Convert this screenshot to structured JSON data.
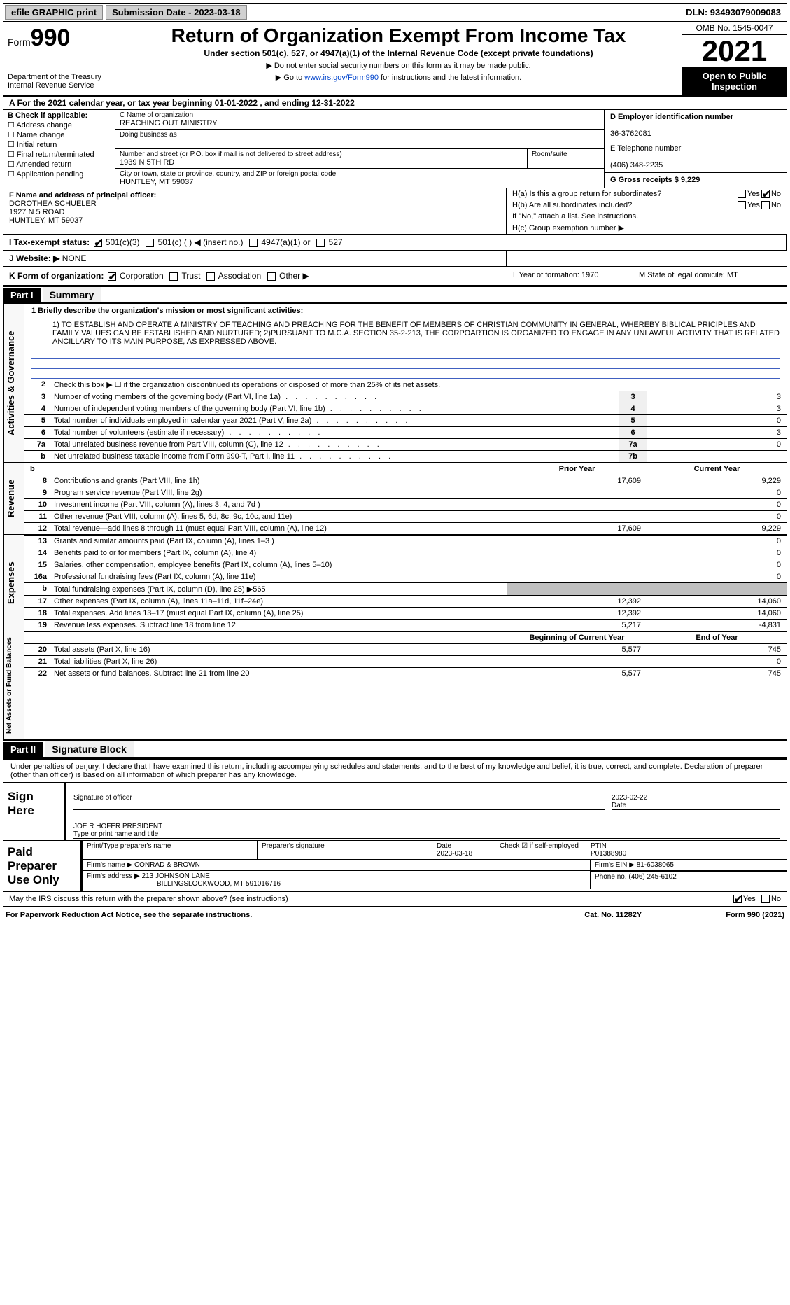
{
  "topbar": {
    "print": "efile GRAPHIC print",
    "sub_label": "Submission Date - 2023-03-18",
    "dln_label": "DLN: 93493079009083"
  },
  "header": {
    "form_prefix": "Form",
    "form_no": "990",
    "dept": "Department of the Treasury\nInternal Revenue Service",
    "title": "Return of Organization Exempt From Income Tax",
    "sub": "Under section 501(c), 527, or 4947(a)(1) of the Internal Revenue Code (except private foundations)",
    "note1": "▶ Do not enter social security numbers on this form as it may be made public.",
    "note2_pre": "▶ Go to ",
    "note2_link": "www.irs.gov/Form990",
    "note2_post": " for instructions and the latest information.",
    "omb": "OMB No. 1545-0047",
    "year": "2021",
    "public": "Open to Public Inspection"
  },
  "line_a": "A For the 2021 calendar year, or tax year beginning 01-01-2022   , and ending 12-31-2022",
  "block_b": {
    "hdr": "B Check if applicable:",
    "items": [
      "Address change",
      "Name change",
      "Initial return",
      "Final return/terminated",
      "Amended return",
      "Application pending"
    ]
  },
  "block_c": {
    "name_lbl": "C Name of organization",
    "name": "REACHING OUT MINISTRY",
    "dba_lbl": "Doing business as",
    "street_lbl": "Number and street (or P.O. box if mail is not delivered to street address)",
    "street": "1939 N 5TH RD",
    "suite_lbl": "Room/suite",
    "city_lbl": "City or town, state or province, country, and ZIP or foreign postal code",
    "city": "HUNTLEY, MT  59037"
  },
  "block_d": {
    "ein_lbl": "D Employer identification number",
    "ein": "36-3762081",
    "tel_lbl": "E Telephone number",
    "tel": "(406) 348-2235",
    "gross_lbl": "G Gross receipts $ 9,229"
  },
  "block_f": {
    "hdr": "F  Name and address of principal officer:",
    "name": "DOROTHEA SCHUELER",
    "street": "1927 N 5 ROAD",
    "city": "HUNTLEY, MT  59037"
  },
  "block_h": {
    "a": "H(a)  Is this a group return for subordinates?",
    "b": "H(b)  Are all subordinates included?",
    "b_note": "If \"No,\" attach a list. See instructions.",
    "c": "H(c)  Group exemption number ▶",
    "yes": "Yes",
    "no": "No"
  },
  "row_i": {
    "lbl": "I   Tax-exempt status:",
    "opts": [
      "501(c)(3)",
      "501(c) (  ) ◀ (insert no.)",
      "4947(a)(1) or",
      "527"
    ]
  },
  "row_j": {
    "lbl": "J   Website: ▶",
    "val": "NONE"
  },
  "row_k": {
    "lbl": "K Form of organization:",
    "opts": [
      "Corporation",
      "Trust",
      "Association",
      "Other ▶"
    ],
    "l_lbl": "L Year of formation: 1970",
    "m_lbl": "M State of legal domicile: MT"
  },
  "parts": {
    "p1": "Part I",
    "p1_title": "Summary",
    "p2": "Part II",
    "p2_title": "Signature Block"
  },
  "summary": {
    "q1_hdr": "1  Briefly describe the organization's mission or most significant activities:",
    "q1": "1) TO ESTABLISH AND OPERATE A MINISTRY OF TEACHING AND PREACHING FOR THE BENEFIT OF MEMBERS OF CHRISTIAN COMMUNITY IN GENERAL, WHEREBY BIBLICAL PRICIPLES AND FAMILY VALUES CAN BE ESTABLISHED AND NURTURED; 2)PURSUANT TO M.C.A. SECTION 35-2-213, THE CORPOARTION IS ORGANIZED TO ENGAGE IN ANY UNLAWFUL ACTIVITY THAT IS RELATED ANCILLARY TO ITS MAIN PURPOSE, AS EXPRESSED ABOVE.",
    "q2": "Check this box ▶ ☐  if the organization discontinued its operations or disposed of more than 25% of its net assets.",
    "rows": [
      {
        "n": "3",
        "lbl": "Number of voting members of the governing body (Part VI, line 1a)",
        "box": "3",
        "v": "3"
      },
      {
        "n": "4",
        "lbl": "Number of independent voting members of the governing body (Part VI, line 1b)",
        "box": "4",
        "v": "3"
      },
      {
        "n": "5",
        "lbl": "Total number of individuals employed in calendar year 2021 (Part V, line 2a)",
        "box": "5",
        "v": "0"
      },
      {
        "n": "6",
        "lbl": "Total number of volunteers (estimate if necessary)",
        "box": "6",
        "v": "3"
      },
      {
        "n": "7a",
        "lbl": "Total unrelated business revenue from Part VIII, column (C), line 12",
        "box": "7a",
        "v": "0"
      },
      {
        "n": "b",
        "lbl": "Net unrelated business taxable income from Form 990-T, Part I, line 11",
        "box": "7b",
        "v": ""
      }
    ]
  },
  "fin": {
    "prior": "Prior Year",
    "current": "Current Year",
    "boy": "Beginning of Current Year",
    "eoy": "End of Year",
    "revenue": [
      {
        "n": "8",
        "lbl": "Contributions and grants (Part VIII, line 1h)",
        "c1": "17,609",
        "c2": "9,229"
      },
      {
        "n": "9",
        "lbl": "Program service revenue (Part VIII, line 2g)",
        "c1": "",
        "c2": "0"
      },
      {
        "n": "10",
        "lbl": "Investment income (Part VIII, column (A), lines 3, 4, and 7d )",
        "c1": "",
        "c2": "0"
      },
      {
        "n": "11",
        "lbl": "Other revenue (Part VIII, column (A), lines 5, 6d, 8c, 9c, 10c, and 11e)",
        "c1": "",
        "c2": "0"
      },
      {
        "n": "12",
        "lbl": "Total revenue—add lines 8 through 11 (must equal Part VIII, column (A), line 12)",
        "c1": "17,609",
        "c2": "9,229"
      }
    ],
    "expenses": [
      {
        "n": "13",
        "lbl": "Grants and similar amounts paid (Part IX, column (A), lines 1–3 )",
        "c1": "",
        "c2": "0"
      },
      {
        "n": "14",
        "lbl": "Benefits paid to or for members (Part IX, column (A), line 4)",
        "c1": "",
        "c2": "0"
      },
      {
        "n": "15",
        "lbl": "Salaries, other compensation, employee benefits (Part IX, column (A), lines 5–10)",
        "c1": "",
        "c2": "0"
      },
      {
        "n": "16a",
        "lbl": "Professional fundraising fees (Part IX, column (A), line 11e)",
        "c1": "",
        "c2": "0"
      },
      {
        "n": "b",
        "lbl": "Total fundraising expenses (Part IX, column (D), line 25) ▶565",
        "c1": "gray",
        "c2": "gray"
      },
      {
        "n": "17",
        "lbl": "Other expenses (Part IX, column (A), lines 11a–11d, 11f–24e)",
        "c1": "12,392",
        "c2": "14,060"
      },
      {
        "n": "18",
        "lbl": "Total expenses. Add lines 13–17 (must equal Part IX, column (A), line 25)",
        "c1": "12,392",
        "c2": "14,060"
      },
      {
        "n": "19",
        "lbl": "Revenue less expenses. Subtract line 18 from line 12",
        "c1": "5,217",
        "c2": "-4,831"
      }
    ],
    "netassets": [
      {
        "n": "20",
        "lbl": "Total assets (Part X, line 16)",
        "c1": "5,577",
        "c2": "745"
      },
      {
        "n": "21",
        "lbl": "Total liabilities (Part X, line 26)",
        "c1": "",
        "c2": "0"
      },
      {
        "n": "22",
        "lbl": "Net assets or fund balances. Subtract line 21 from line 20",
        "c1": "5,577",
        "c2": "745"
      }
    ]
  },
  "vlabels": {
    "ag": "Activities & Governance",
    "rev": "Revenue",
    "exp": "Expenses",
    "na": "Net Assets or Fund Balances"
  },
  "sig": {
    "decl": "Under penalties of perjury, I declare that I have examined this return, including accompanying schedules and statements, and to the best of my knowledge and belief, it is true, correct, and complete. Declaration of preparer (other than officer) is based on all information of which preparer has any knowledge.",
    "sign_here": "Sign Here",
    "sig_officer": "Signature of officer",
    "date": "Date",
    "date_val": "2023-02-22",
    "type_name": "JOE R HOFER PRESIDENT",
    "type_lbl": "Type or print name and title",
    "paid": "Paid Preparer Use Only",
    "pp_name_lbl": "Print/Type preparer's name",
    "pp_sig_lbl": "Preparer's signature",
    "pp_date_lbl": "Date",
    "pp_date": "2023-03-18",
    "pp_check": "Check ☑ if self-employed",
    "ptin_lbl": "PTIN",
    "ptin": "P01388980",
    "firm_name_lbl": "Firm's name  ▶",
    "firm_name": "CONRAD & BROWN",
    "firm_ein_lbl": "Firm's EIN ▶",
    "firm_ein": "81-6038065",
    "firm_addr_lbl": "Firm's address ▶",
    "firm_addr": "213 JOHNSON LANE",
    "firm_addr2": "BILLINGSLOCKWOOD, MT  591016716",
    "phone_lbl": "Phone no.",
    "phone": "(406) 245-6102",
    "discuss": "May the IRS discuss this return with the preparer shown above? (see instructions)",
    "yes": "Yes",
    "no": "No"
  },
  "footer": {
    "pra": "For Paperwork Reduction Act Notice, see the separate instructions.",
    "cat": "Cat. No. 11282Y",
    "form": "Form 990 (2021)"
  }
}
